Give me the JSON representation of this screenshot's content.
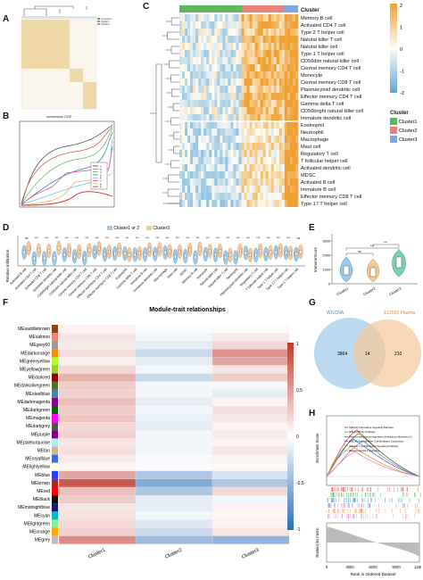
{
  "panels": {
    "A": {
      "letter": "A"
    },
    "B": {
      "letter": "B",
      "title": "consensus CDF",
      "legend": [
        "2",
        "3",
        "4",
        "5",
        "6",
        "7",
        "8",
        "9"
      ]
    },
    "C": {
      "letter": "C",
      "cluster_label": "Cluster",
      "legend_title": "Cluster",
      "legend_items": [
        "Cluster1",
        "Cluster2",
        "Cluster3"
      ],
      "scale_ticks": [
        "2",
        "1",
        "0",
        "-1",
        "-2"
      ],
      "rows": [
        "Memory B cell",
        "Activated CD4 T cell",
        "Type 2 T helper cell",
        "Natural killer T cell",
        "Natural killer cell",
        "Type 1 T helper cell",
        "CD56dim natural killer cell",
        "Central memory CD4 T cell",
        "Monocyte",
        "Central memory CD8 T cell",
        "Plasmacytoid dendritic cell",
        "Effector memory CD4 T cell",
        "Gamma delta T cell",
        "CD56bright natural killer cell",
        "Immature dendritic cell",
        "Eosinophil",
        "Neutrophil",
        "Macrophage",
        "Mast cell",
        "Regulatory T cell",
        "T follicular helper cell",
        "Activated dendritic cell",
        "MDSC",
        "Activated B cell",
        "Immature  B cell",
        "Effector memory CD8 T cell",
        "Type 17 T helper cell"
      ]
    },
    "D": {
      "letter": "D",
      "ylabel": "Relative infiltration",
      "legend": [
        "Cluster1 or 2",
        "Cluster3"
      ],
      "categories": [
        "Activated B cell",
        "Activated CD4 T cell",
        "Activated CD8 T cell",
        "Activated dendritic cell",
        "CD56bright natural killer cell",
        "CD56dim natural killer cell",
        "Central memory CD4 T cell",
        "Central memory CD8 T cell",
        "Effector memeory CD4 T cell",
        "Effector memeory CD8 T cell",
        "Eosinophil",
        "Gamma delta T cell",
        "Immature B cell",
        "Immature dendritic cell",
        "Macrophage",
        "Mast cell",
        "MDSC",
        "Memory B cell",
        "Monocyte",
        "Natural killer cell",
        "Natural killer T cell",
        "Neutrophil",
        "Plasmacytoid dendritic cell",
        "Regulatory T cell",
        "T follicular helper cell",
        "Type 1 T helper cell",
        "Type 17 T helper cell",
        "Type 2 T helper cell"
      ],
      "significance": [
        "ns",
        "***",
        "***",
        "***",
        "***",
        "***",
        "***",
        "***",
        "***",
        "***",
        "***",
        "***",
        "***",
        "***",
        "***",
        "***",
        "***",
        "***",
        "***",
        "***",
        "***",
        "***",
        "***",
        "***",
        "***",
        "***",
        "***",
        "ns"
      ]
    },
    "E": {
      "letter": "E",
      "ylabel": "ImmuneScore",
      "categories": [
        "Cluster1",
        "Cluster2",
        "Cluster3"
      ],
      "ticks": [
        "3000",
        "2000",
        "1000",
        "0"
      ],
      "sig": [
        "ns",
        "***",
        "***"
      ]
    },
    "F": {
      "letter": "F",
      "title": "Module-trait relationships",
      "columns": [
        "Cluster1",
        "Cluster2",
        "Cluster3"
      ],
      "modules": [
        "MEsaddlebrown",
        "MEsalmon",
        "MEgrey60",
        "MEdarkorange",
        "MEgreenyellow",
        "MEyellowgreen",
        "MEdarkred",
        "MEdarkolivegreen",
        "MEsteelblue",
        "MEdarkmagenta",
        "MEdarkgreen",
        "MEmagenta",
        "MEdarkgrey",
        "MEpurple",
        "MEpaleturquoise",
        "MEtan",
        "MEroyalblue",
        "MElightyellow",
        "MEblue",
        "MEbrown",
        "MEred",
        "MEblack",
        "MEmidnightblue",
        "MEcyan",
        "MElightgreen",
        "MEorange",
        "MEgrey"
      ],
      "scale_ticks": [
        "1",
        "0.5",
        "0",
        "-0.5",
        "-1"
      ]
    },
    "G": {
      "letter": "G",
      "sets": [
        "WGCNA",
        "E12000 Plasma"
      ],
      "counts": {
        "left": "3864",
        "overlap": "14",
        "right": "210"
      }
    },
    "H": {
      "letter": "H",
      "ylabel_top": "Enrichment Score",
      "ylabel_bottom": "Ranked list metric",
      "xlabel": "Rank in Ordered Dataset",
      "xticks": [
        "0",
        "3000",
        "6000",
        "9000",
        "12000"
      ],
      "legend": [
        "[KEGG] Chemokine Signaling Pathway",
        "[PID] CD8 Tcr Pathway",
        "[Reactome] Immunoregulatory Interactions Between A Lymphoid And A Non-Lymphoid Cell",
        "[KEGG] Natural Killer Cell Mediated Cytotoxicity",
        "[KEGG] T Cell Receptor Signaling Pathway",
        "[Reactome] Pd 1 Signaling"
      ]
    }
  },
  "colors": {
    "cluster1": "#5cb85c",
    "cluster2": "#e8837a",
    "cluster3": "#7fa7dc",
    "high": "#f0a030",
    "low": "#5fa8d8",
    "venn_left": "#9ec9e8",
    "venn_right": "#f5c79a"
  }
}
